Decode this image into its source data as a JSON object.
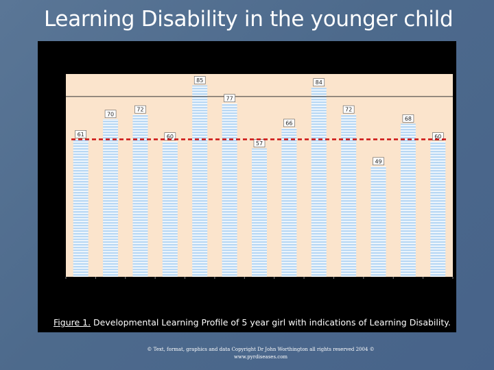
{
  "slide": {
    "title": "Learning Disability in the younger child",
    "caption_figure": "Figure 1.",
    "caption_text": " Developmental Learning Profile of 5 year girl with indications of Learning Disability.",
    "copyright_line1": "© Text, format, graphics and data Copyright Dr John Worthington all rights reserved 2004 ©",
    "copyright_line2": "www.pyrdiseases.com"
  },
  "colors": {
    "plot_background": "#fbe4cc",
    "bar_fill": "#b9d8f4",
    "bar_stripe": "#ffffff",
    "threshold_line": "#cc1111",
    "reference_line": "#333333"
  },
  "chart_data": {
    "type": "bar",
    "values": [
      61,
      70,
      72,
      60,
      85,
      77,
      57,
      66,
      84,
      72,
      49,
      68,
      60
    ],
    "data_labels": [
      "61",
      "70",
      "72",
      "60",
      "85",
      "77",
      "57",
      "66",
      "84",
      "72",
      "49",
      "68",
      "60"
    ],
    "threshold_value": 61,
    "threshold_style": "dashed red",
    "reference_value": 80,
    "ylim": [
      0,
      90
    ],
    "grid": false,
    "legend": "none"
  }
}
